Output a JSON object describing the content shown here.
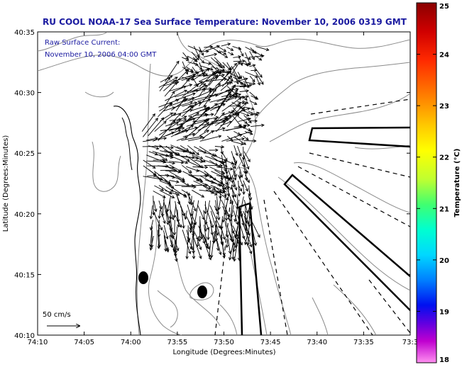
{
  "title": "RU COOL  NOAA-17  Sea Surface Temperature:  November 10, 2006 0319 GMT",
  "annotation": {
    "line1": "Raw Surface Current:",
    "line2": "November 10, 2006 04:00 GMT"
  },
  "scale": {
    "label": "50 cm/s"
  },
  "axes": {
    "xlabel": "Longitude (Degrees:Minutes)",
    "ylabel": "Latitude (Degrees:Minutes)",
    "xticks": [
      "74:10",
      "74:05",
      "74:00",
      "73:55",
      "73:50",
      "73:45",
      "73:40",
      "73:35",
      "73:3"
    ],
    "yticks": [
      "40:35",
      "40:30",
      "40:25",
      "40:20",
      "40:15",
      "40:10"
    ]
  },
  "colorbar": {
    "label": "Temperature (°C)",
    "ticks": [
      "25",
      "24",
      "23",
      "22",
      "21",
      "20",
      "19",
      "18"
    ]
  },
  "colors": {
    "title": "#1a1aa0",
    "annotation": "#1a1aa0",
    "frame": "#000000",
    "contour": "#8a8a8a",
    "coast": "#000000"
  }
}
